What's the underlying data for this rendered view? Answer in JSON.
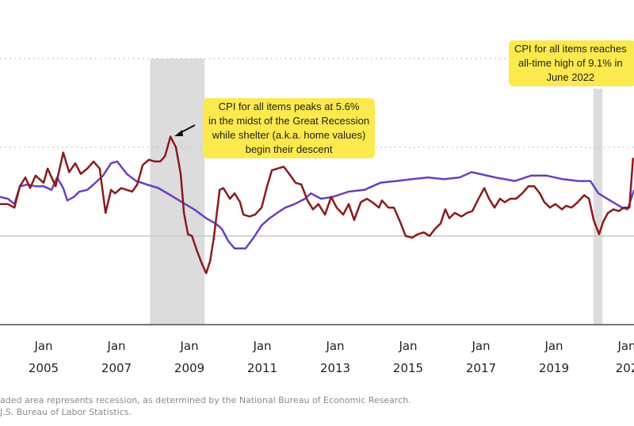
{
  "chart_data": {
    "type": "line",
    "title": "",
    "xlabel": "",
    "ylabel": "",
    "x_range": [
      2003.83,
      2021.2
    ],
    "ylim": [
      -5,
      10
    ],
    "gridlines": [
      {
        "value": 10,
        "style": "dotted"
      },
      {
        "value": 5,
        "style": "dotted"
      },
      {
        "value": 0,
        "style": "solid"
      }
    ],
    "x_ticks": [
      {
        "x": 2005,
        "line1": "Jan",
        "line2": "2005"
      },
      {
        "x": 2007,
        "line1": "Jan",
        "line2": "2007"
      },
      {
        "x": 2009,
        "line1": "Jan",
        "line2": "2009"
      },
      {
        "x": 2011,
        "line1": "Jan",
        "line2": "2011"
      },
      {
        "x": 2013,
        "line1": "Jan",
        "line2": "2013"
      },
      {
        "x": 2015,
        "line1": "Jan",
        "line2": "2015"
      },
      {
        "x": 2017,
        "line1": "Jan",
        "line2": "2017"
      },
      {
        "x": 2019,
        "line1": "Jan",
        "line2": "2019"
      },
      {
        "x": 2021,
        "line1": "Jan",
        "line2": "202"
      }
    ],
    "recessions": [
      {
        "start": 2007.92,
        "end": 2009.42
      },
      {
        "start": 2020.08,
        "end": 2020.33
      }
    ],
    "series": [
      {
        "name": "CPI for all items",
        "color": "#8b1a1a",
        "points": [
          [
            2003.8,
            1.8
          ],
          [
            2004.02,
            1.8
          ],
          [
            2004.2,
            1.6
          ],
          [
            2004.35,
            2.8
          ],
          [
            2004.5,
            3.3
          ],
          [
            2004.63,
            2.7
          ],
          [
            2004.78,
            3.4
          ],
          [
            2005.0,
            3.0
          ],
          [
            2005.11,
            3.8
          ],
          [
            2005.33,
            2.8
          ],
          [
            2005.54,
            4.7
          ],
          [
            2005.7,
            3.6
          ],
          [
            2005.87,
            4.1
          ],
          [
            2006.02,
            3.5
          ],
          [
            2006.2,
            3.8
          ],
          [
            2006.37,
            4.2
          ],
          [
            2006.54,
            3.8
          ],
          [
            2006.7,
            1.3
          ],
          [
            2006.85,
            2.6
          ],
          [
            2006.96,
            2.4
          ],
          [
            2007.13,
            2.7
          ],
          [
            2007.28,
            2.6
          ],
          [
            2007.43,
            2.5
          ],
          [
            2007.57,
            2.9
          ],
          [
            2007.72,
            4.0
          ],
          [
            2007.89,
            4.3
          ],
          [
            2008.04,
            4.2
          ],
          [
            2008.2,
            4.2
          ],
          [
            2008.33,
            4.5
          ],
          [
            2008.48,
            5.6
          ],
          [
            2008.63,
            5.0
          ],
          [
            2008.76,
            3.5
          ],
          [
            2008.85,
            1.3
          ],
          [
            2008.96,
            0.1
          ],
          [
            2009.07,
            0.0
          ],
          [
            2009.2,
            -0.8
          ],
          [
            2009.35,
            -1.6
          ],
          [
            2009.46,
            -2.1
          ],
          [
            2009.57,
            -1.4
          ],
          [
            2009.67,
            -0.1
          ],
          [
            2009.83,
            2.6
          ],
          [
            2009.93,
            2.7
          ],
          [
            2010.11,
            2.1
          ],
          [
            2010.24,
            2.4
          ],
          [
            2010.39,
            1.9
          ],
          [
            2010.48,
            1.2
          ],
          [
            2010.65,
            1.1
          ],
          [
            2010.8,
            1.2
          ],
          [
            2010.98,
            1.6
          ],
          [
            2011.13,
            2.8
          ],
          [
            2011.26,
            3.7
          ],
          [
            2011.41,
            3.8
          ],
          [
            2011.59,
            3.9
          ],
          [
            2011.74,
            3.5
          ],
          [
            2011.91,
            3.0
          ],
          [
            2012.07,
            2.9
          ],
          [
            2012.24,
            2.0
          ],
          [
            2012.39,
            1.5
          ],
          [
            2012.54,
            1.8
          ],
          [
            2012.72,
            1.2
          ],
          [
            2012.89,
            2.2
          ],
          [
            2013.04,
            1.6
          ],
          [
            2013.22,
            1.2
          ],
          [
            2013.37,
            1.8
          ],
          [
            2013.52,
            0.9
          ],
          [
            2013.7,
            1.9
          ],
          [
            2013.87,
            2.1
          ],
          [
            2014.02,
            1.9
          ],
          [
            2014.2,
            1.6
          ],
          [
            2014.28,
            2.0
          ],
          [
            2014.46,
            1.6
          ],
          [
            2014.61,
            1.6
          ],
          [
            2014.78,
            0.8
          ],
          [
            2014.93,
            0.0
          ],
          [
            2015.11,
            -0.1
          ],
          [
            2015.26,
            0.1
          ],
          [
            2015.43,
            0.2
          ],
          [
            2015.59,
            0.0
          ],
          [
            2015.74,
            0.4
          ],
          [
            2015.89,
            0.7
          ],
          [
            2016.02,
            1.5
          ],
          [
            2016.13,
            1.0
          ],
          [
            2016.28,
            1.3
          ],
          [
            2016.46,
            1.1
          ],
          [
            2016.61,
            1.3
          ],
          [
            2016.76,
            1.4
          ],
          [
            2016.93,
            2.1
          ],
          [
            2017.09,
            2.7
          ],
          [
            2017.22,
            2.1
          ],
          [
            2017.37,
            1.6
          ],
          [
            2017.52,
            2.1
          ],
          [
            2017.65,
            1.9
          ],
          [
            2017.8,
            2.1
          ],
          [
            2017.96,
            2.1
          ],
          [
            2018.13,
            2.4
          ],
          [
            2018.3,
            2.8
          ],
          [
            2018.46,
            2.8
          ],
          [
            2018.61,
            2.4
          ],
          [
            2018.74,
            1.9
          ],
          [
            2018.89,
            1.6
          ],
          [
            2019.04,
            1.8
          ],
          [
            2019.22,
            1.5
          ],
          [
            2019.33,
            1.7
          ],
          [
            2019.48,
            1.6
          ],
          [
            2019.65,
            1.9
          ],
          [
            2019.83,
            2.3
          ],
          [
            2019.96,
            2.1
          ],
          [
            2020.09,
            0.9
          ],
          [
            2020.24,
            0.1
          ],
          [
            2020.35,
            0.8
          ],
          [
            2020.48,
            1.3
          ],
          [
            2020.63,
            1.5
          ],
          [
            2020.78,
            1.4
          ],
          [
            2020.91,
            1.6
          ],
          [
            2021.07,
            1.6
          ],
          [
            2021.17,
            4.4
          ]
        ]
      },
      {
        "name": "Shelter",
        "color": "#6b3fbf",
        "points": [
          [
            2003.8,
            2.2
          ],
          [
            2004.02,
            2.1
          ],
          [
            2004.2,
            1.8
          ],
          [
            2004.35,
            2.8
          ],
          [
            2004.57,
            2.9
          ],
          [
            2004.78,
            2.8
          ],
          [
            2005.0,
            2.8
          ],
          [
            2005.22,
            2.6
          ],
          [
            2005.37,
            3.3
          ],
          [
            2005.54,
            2.7
          ],
          [
            2005.65,
            2.0
          ],
          [
            2005.83,
            2.2
          ],
          [
            2005.98,
            2.5
          ],
          [
            2006.2,
            2.6
          ],
          [
            2006.37,
            2.9
          ],
          [
            2006.63,
            3.4
          ],
          [
            2006.85,
            4.1
          ],
          [
            2007.02,
            4.2
          ],
          [
            2007.28,
            3.5
          ],
          [
            2007.54,
            3.1
          ],
          [
            2007.83,
            2.9
          ],
          [
            2008.15,
            2.7
          ],
          [
            2008.48,
            2.3
          ],
          [
            2008.8,
            1.9
          ],
          [
            2009.13,
            1.5
          ],
          [
            2009.46,
            1.0
          ],
          [
            2009.72,
            0.7
          ],
          [
            2009.89,
            0.4
          ],
          [
            2010.07,
            -0.3
          ],
          [
            2010.24,
            -0.7
          ],
          [
            2010.54,
            -0.7
          ],
          [
            2010.76,
            -0.1
          ],
          [
            2010.98,
            0.6
          ],
          [
            2011.2,
            1.0
          ],
          [
            2011.41,
            1.3
          ],
          [
            2011.63,
            1.6
          ],
          [
            2011.89,
            1.8
          ],
          [
            2012.17,
            2.1
          ],
          [
            2012.33,
            2.4
          ],
          [
            2012.61,
            2.1
          ],
          [
            2012.93,
            2.2
          ],
          [
            2013.37,
            2.5
          ],
          [
            2013.8,
            2.6
          ],
          [
            2014.24,
            3.0
          ],
          [
            2014.67,
            3.1
          ],
          [
            2015.11,
            3.2
          ],
          [
            2015.54,
            3.3
          ],
          [
            2015.98,
            3.2
          ],
          [
            2016.41,
            3.3
          ],
          [
            2016.74,
            3.6
          ],
          [
            2016.96,
            3.5
          ],
          [
            2017.39,
            3.3
          ],
          [
            2017.93,
            3.1
          ],
          [
            2018.37,
            3.4
          ],
          [
            2018.8,
            3.4
          ],
          [
            2019.24,
            3.2
          ],
          [
            2019.67,
            3.1
          ],
          [
            2020.0,
            3.1
          ],
          [
            2020.22,
            2.4
          ],
          [
            2020.54,
            2.0
          ],
          [
            2020.87,
            1.6
          ],
          [
            2021.02,
            1.5
          ],
          [
            2021.2,
            2.6
          ]
        ]
      }
    ],
    "legend": []
  },
  "annotations": {
    "recession_peak": {
      "lines": "CPI for all items peaks at 5.6%\nin the midst of the Great Recession\nwhile shelter (a.k.a. home values)\nbegin their descent"
    },
    "all_time_high": {
      "lines": "CPI for all items reaches\nall-time high of 9.1% in\nJune 2022"
    }
  },
  "footnotes": {
    "line1": "aded area represents recession, as determined by the National Bureau of Economic Research.",
    "line2": "J.S. Bureau of Labor Statistics."
  }
}
